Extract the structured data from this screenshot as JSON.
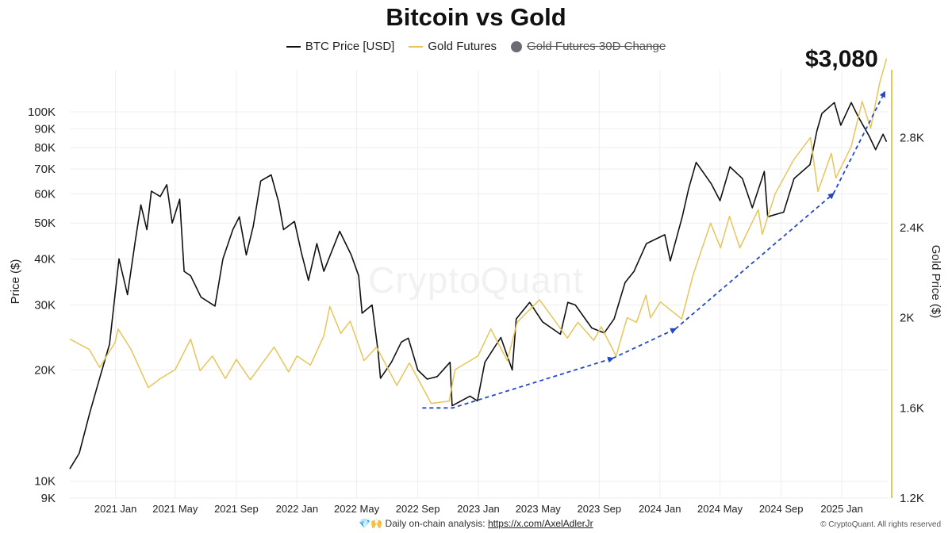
{
  "colors": {
    "btc": "#111111",
    "gold": "#e6c55a",
    "trend": "#2447c9",
    "grid": "#eeeeee",
    "legend_dot": "#6b6b73"
  },
  "header": {
    "title": "Bitcoin vs Gold"
  },
  "legend": {
    "btc_label": "BTC Price [USD]",
    "gold_label": "Gold Futures",
    "change_label": "Gold Futures 30D Change"
  },
  "annotation": {
    "big_value": "$3,080"
  },
  "watermark": "CryptoQuant",
  "footer": {
    "emoji": "💎🙌",
    "text": "Daily on-chain analysis:",
    "link": "https://x.com/AxelAdlerJr",
    "copyright": "© CryptoQuant. All rights reserved"
  },
  "chart_data": {
    "type": "line",
    "title": "Bitcoin vs Gold",
    "x_axis": {
      "range": [
        "2020-10-01",
        "2025-04-05"
      ],
      "ticks": [
        "2021 Jan",
        "2021 May",
        "2021 Sep",
        "2022 Jan",
        "2022 May",
        "2022 Sep",
        "2023 Jan",
        "2023 May",
        "2023 Sep",
        "2024 Jan",
        "2024 May",
        "2024 Sep",
        "2025 Jan"
      ]
    },
    "y_left": {
      "label": "Price ($)",
      "scale": "log",
      "range": [
        9000,
        130000
      ],
      "ticks": [
        {
          "v": 9000,
          "label": "9K"
        },
        {
          "v": 10000,
          "label": "10K"
        },
        {
          "v": 20000,
          "label": "20K"
        },
        {
          "v": 30000,
          "label": "30K"
        },
        {
          "v": 40000,
          "label": "40K"
        },
        {
          "v": 50000,
          "label": "50K"
        },
        {
          "v": 60000,
          "label": "60K"
        },
        {
          "v": 70000,
          "label": "70K"
        },
        {
          "v": 80000,
          "label": "80K"
        },
        {
          "v": 90000,
          "label": "90K"
        },
        {
          "v": 100000,
          "label": "100K"
        }
      ]
    },
    "y_right": {
      "label": "Gold Price ($)",
      "scale": "linear",
      "range": [
        1200,
        3100
      ],
      "ticks": [
        {
          "v": 1200,
          "label": "1.2K"
        },
        {
          "v": 1600,
          "label": "1.6K"
        },
        {
          "v": 2000,
          "label": "2K"
        },
        {
          "v": 2400,
          "label": "2.4K"
        },
        {
          "v": 2800,
          "label": "2.8K"
        }
      ]
    },
    "series": [
      {
        "name": "BTC Price [USD]",
        "axis": "left",
        "points": [
          [
            "2020-10-01",
            10800
          ],
          [
            "2020-10-20",
            11900
          ],
          [
            "2020-11-10",
            15300
          ],
          [
            "2020-12-01",
            19200
          ],
          [
            "2020-12-20",
            23500
          ],
          [
            "2021-01-08",
            40000
          ],
          [
            "2021-01-25",
            32000
          ],
          [
            "2021-02-10",
            45000
          ],
          [
            "2021-02-21",
            56000
          ],
          [
            "2021-03-05",
            48000
          ],
          [
            "2021-03-14",
            61000
          ],
          [
            "2021-04-01",
            59000
          ],
          [
            "2021-04-14",
            63500
          ],
          [
            "2021-04-25",
            50000
          ],
          [
            "2021-05-10",
            58000
          ],
          [
            "2021-05-19",
            37000
          ],
          [
            "2021-06-01",
            36000
          ],
          [
            "2021-06-22",
            31500
          ],
          [
            "2021-07-20",
            29800
          ],
          [
            "2021-08-05",
            40000
          ],
          [
            "2021-08-25",
            48000
          ],
          [
            "2021-09-07",
            52000
          ],
          [
            "2021-09-21",
            41000
          ],
          [
            "2021-10-05",
            49000
          ],
          [
            "2021-10-20",
            65000
          ],
          [
            "2021-11-10",
            67500
          ],
          [
            "2021-11-25",
            57000
          ],
          [
            "2021-12-05",
            48000
          ],
          [
            "2021-12-27",
            50500
          ],
          [
            "2022-01-10",
            41500
          ],
          [
            "2022-01-24",
            35000
          ],
          [
            "2022-02-10",
            44000
          ],
          [
            "2022-02-24",
            37000
          ],
          [
            "2022-03-28",
            47500
          ],
          [
            "2022-04-20",
            41000
          ],
          [
            "2022-05-05",
            36000
          ],
          [
            "2022-05-12",
            28500
          ],
          [
            "2022-06-01",
            30000
          ],
          [
            "2022-06-13",
            22500
          ],
          [
            "2022-06-18",
            19000
          ],
          [
            "2022-07-10",
            21000
          ],
          [
            "2022-07-30",
            23800
          ],
          [
            "2022-08-13",
            24400
          ],
          [
            "2022-09-01",
            20000
          ],
          [
            "2022-09-20",
            18900
          ],
          [
            "2022-10-10",
            19200
          ],
          [
            "2022-11-05",
            21000
          ],
          [
            "2022-11-09",
            16000
          ],
          [
            "2022-12-15",
            17000
          ],
          [
            "2022-12-30",
            16500
          ],
          [
            "2023-01-14",
            21000
          ],
          [
            "2023-02-15",
            24500
          ],
          [
            "2023-03-10",
            20000
          ],
          [
            "2023-03-18",
            27500
          ],
          [
            "2023-04-14",
            30500
          ],
          [
            "2023-05-10",
            27000
          ],
          [
            "2023-06-15",
            25000
          ],
          [
            "2023-06-30",
            30500
          ],
          [
            "2023-07-15",
            30000
          ],
          [
            "2023-08-17",
            26000
          ],
          [
            "2023-09-11",
            25200
          ],
          [
            "2023-10-01",
            27500
          ],
          [
            "2023-10-23",
            34500
          ],
          [
            "2023-11-10",
            37000
          ],
          [
            "2023-12-05",
            44000
          ],
          [
            "2024-01-11",
            46500
          ],
          [
            "2024-01-22",
            39500
          ],
          [
            "2024-02-15",
            52000
          ],
          [
            "2024-02-28",
            62000
          ],
          [
            "2024-03-14",
            73000
          ],
          [
            "2024-04-13",
            64000
          ],
          [
            "2024-05-01",
            57500
          ],
          [
            "2024-05-21",
            71000
          ],
          [
            "2024-06-15",
            66000
          ],
          [
            "2024-07-05",
            55000
          ],
          [
            "2024-07-29",
            69000
          ],
          [
            "2024-08-05",
            52000
          ],
          [
            "2024-09-06",
            53500
          ],
          [
            "2024-09-27",
            66000
          ],
          [
            "2024-10-29",
            72000
          ],
          [
            "2024-11-12",
            89000
          ],
          [
            "2024-11-22",
            99000
          ],
          [
            "2024-12-17",
            106000
          ],
          [
            "2024-12-30",
            92000
          ],
          [
            "2025-01-20",
            106000
          ],
          [
            "2025-02-03",
            97000
          ],
          [
            "2025-02-25",
            86000
          ],
          [
            "2025-03-10",
            79000
          ],
          [
            "2025-03-25",
            87000
          ],
          [
            "2025-04-01",
            83000
          ]
        ]
      },
      {
        "name": "Gold Futures",
        "axis": "right",
        "points": [
          [
            "2020-10-01",
            1905
          ],
          [
            "2020-11-09",
            1860
          ],
          [
            "2020-11-30",
            1780
          ],
          [
            "2020-12-31",
            1890
          ],
          [
            "2021-01-06",
            1950
          ],
          [
            "2021-02-01",
            1860
          ],
          [
            "2021-03-08",
            1690
          ],
          [
            "2021-04-01",
            1730
          ],
          [
            "2021-05-01",
            1770
          ],
          [
            "2021-06-01",
            1905
          ],
          [
            "2021-06-20",
            1765
          ],
          [
            "2021-07-15",
            1830
          ],
          [
            "2021-08-10",
            1730
          ],
          [
            "2021-09-01",
            1815
          ],
          [
            "2021-09-29",
            1725
          ],
          [
            "2021-11-16",
            1870
          ],
          [
            "2021-12-15",
            1760
          ],
          [
            "2022-01-01",
            1830
          ],
          [
            "2022-01-28",
            1790
          ],
          [
            "2022-02-24",
            1920
          ],
          [
            "2022-03-08",
            2050
          ],
          [
            "2022-03-30",
            1930
          ],
          [
            "2022-04-18",
            1985
          ],
          [
            "2022-05-16",
            1810
          ],
          [
            "2022-06-10",
            1870
          ],
          [
            "2022-07-21",
            1700
          ],
          [
            "2022-08-15",
            1800
          ],
          [
            "2022-09-28",
            1620
          ],
          [
            "2022-11-03",
            1630
          ],
          [
            "2022-11-15",
            1770
          ],
          [
            "2022-12-31",
            1830
          ],
          [
            "2023-01-26",
            1950
          ],
          [
            "2023-02-28",
            1810
          ],
          [
            "2023-03-20",
            1980
          ],
          [
            "2023-05-04",
            2080
          ],
          [
            "2023-06-29",
            1910
          ],
          [
            "2023-07-20",
            1980
          ],
          [
            "2023-08-21",
            1900
          ],
          [
            "2023-09-05",
            1960
          ],
          [
            "2023-10-05",
            1830
          ],
          [
            "2023-10-27",
            2000
          ],
          [
            "2023-11-15",
            1980
          ],
          [
            "2023-12-04",
            2100
          ],
          [
            "2023-12-13",
            2000
          ],
          [
            "2024-01-02",
            2070
          ],
          [
            "2024-02-14",
            1995
          ],
          [
            "2024-03-08",
            2190
          ],
          [
            "2024-04-12",
            2420
          ],
          [
            "2024-05-02",
            2310
          ],
          [
            "2024-05-20",
            2450
          ],
          [
            "2024-06-10",
            2310
          ],
          [
            "2024-07-17",
            2480
          ],
          [
            "2024-07-25",
            2370
          ],
          [
            "2024-08-20",
            2550
          ],
          [
            "2024-09-26",
            2700
          ],
          [
            "2024-10-30",
            2800
          ],
          [
            "2024-11-14",
            2560
          ],
          [
            "2024-12-11",
            2730
          ],
          [
            "2024-12-20",
            2620
          ],
          [
            "2025-01-20",
            2760
          ],
          [
            "2025-02-11",
            2960
          ],
          [
            "2025-02-28",
            2840
          ],
          [
            "2025-03-18",
            3040
          ],
          [
            "2025-04-01",
            3150
          ]
        ]
      }
    ],
    "trend_arrows": [
      [
        [
          "2022-09-10",
          1600
        ],
        [
          "2022-11-10",
          1600
        ],
        [
          "2023-09-28",
          1820
        ]
      ],
      [
        [
          "2023-09-28",
          1820
        ],
        [
          "2024-02-01",
          1950
        ]
      ],
      [
        [
          "2024-02-01",
          1950
        ],
        [
          "2024-12-15",
          2550
        ]
      ],
      [
        [
          "2024-12-15",
          2550
        ],
        [
          "2025-03-28",
          3000
        ]
      ]
    ]
  }
}
